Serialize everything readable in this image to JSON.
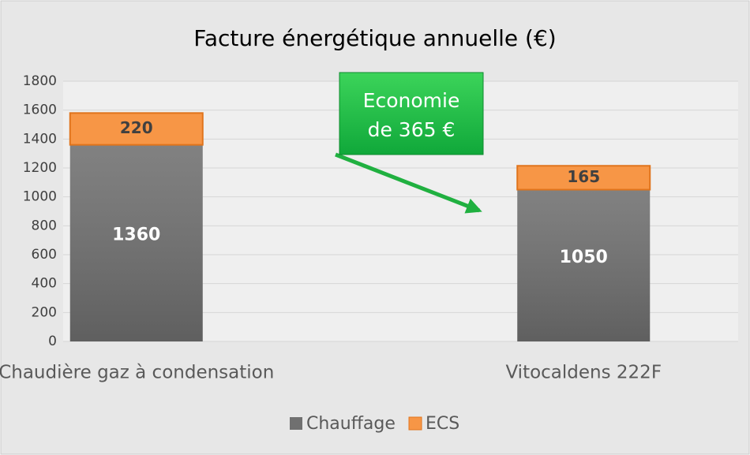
{
  "chart_data": {
    "type": "stacked_bar",
    "title": "Facture énergétique annuelle (€)",
    "categories": [
      "Chaudière gaz à condensation",
      "Vitocaldens 222F"
    ],
    "series": [
      {
        "name": "Chauffage",
        "color": "#707070",
        "values": [
          1360,
          1050
        ]
      },
      {
        "name": "ECS",
        "color": "#f79646",
        "values": [
          220,
          165
        ]
      }
    ],
    "ylim": [
      0,
      1800
    ],
    "yticks": [
      0,
      200,
      400,
      600,
      800,
      1000,
      1200,
      1400,
      1600,
      1800
    ],
    "grid": true,
    "legend": "bottom",
    "annotation": [
      "Economie",
      "de 365 €"
    ]
  }
}
